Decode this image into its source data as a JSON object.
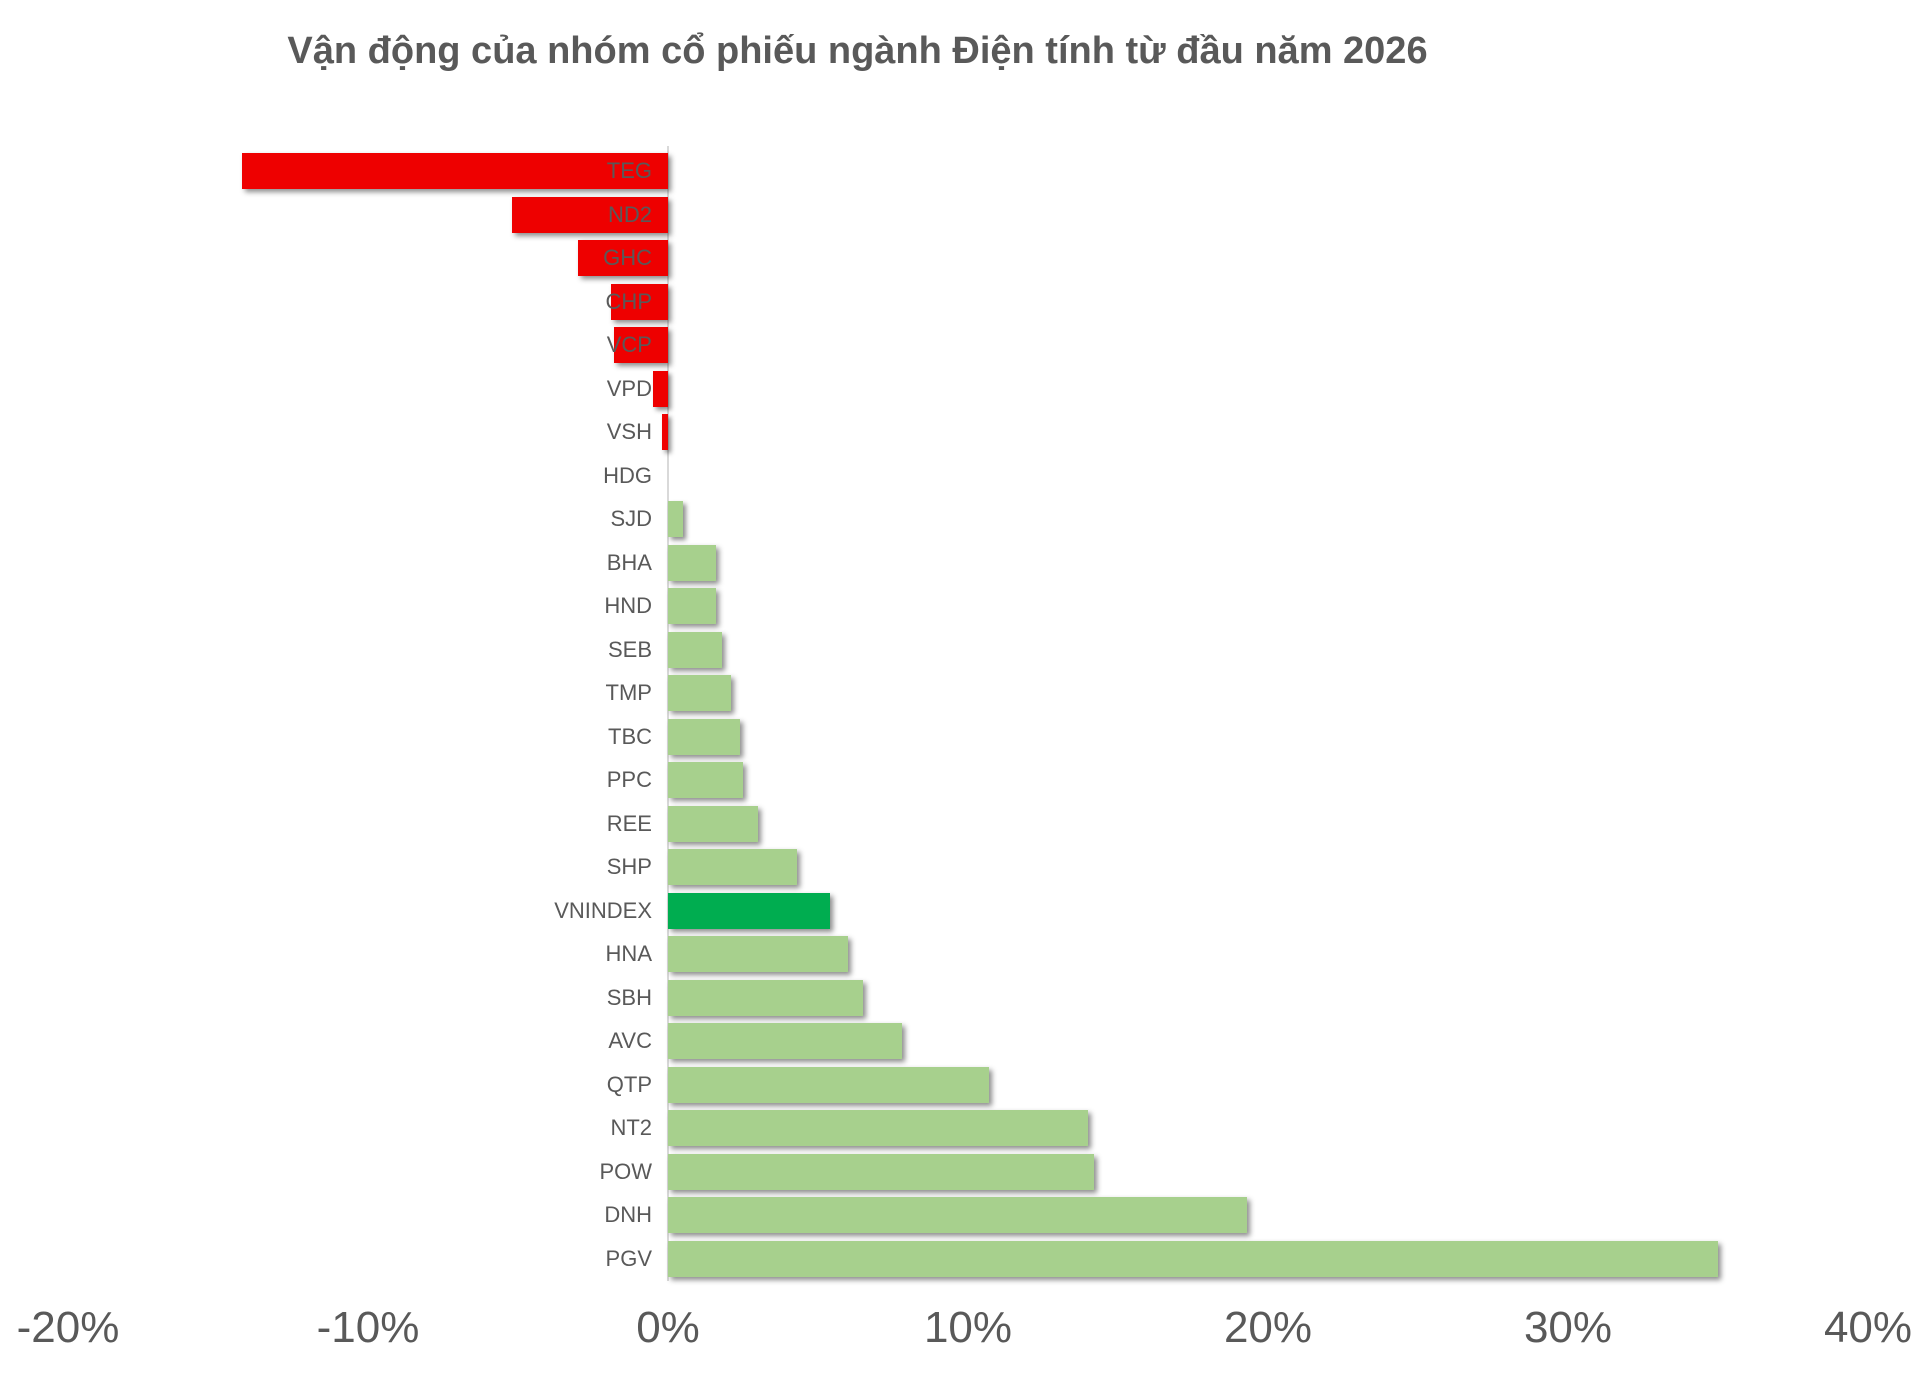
{
  "chart_data": {
    "type": "bar",
    "orientation": "horizontal",
    "title": "Vận động của nhóm cổ phiếu ngành Điện tính từ đầu năm 2026",
    "xlabel": "",
    "ylabel": "",
    "unit": "%",
    "grid": false,
    "legend": false,
    "categories": [
      "TEG",
      "ND2",
      "GHC",
      "CHP",
      "VCP",
      "VPD",
      "VSH",
      "HDG",
      "SJD",
      "BHA",
      "HND",
      "SEB",
      "TMP",
      "TBC",
      "PPC",
      "REE",
      "SHP",
      "VNINDEX",
      "HNA",
      "SBH",
      "AVC",
      "QTP",
      "NT2",
      "POW",
      "DNH",
      "PGV"
    ],
    "values": [
      -14.2,
      -5.2,
      -3.0,
      -1.9,
      -1.8,
      -0.5,
      -0.2,
      0.0,
      0.5,
      1.6,
      1.6,
      1.8,
      2.1,
      2.4,
      2.5,
      3.0,
      4.3,
      5.4,
      6.0,
      6.5,
      7.8,
      10.7,
      14.0,
      14.2,
      19.3,
      35.0
    ],
    "highlight_category": "VNINDEX",
    "x_tick_values": [
      -20,
      -10,
      0,
      10,
      20,
      30,
      40
    ],
    "x_tick_labels": [
      "-20%",
      "-10%",
      "0%",
      "10%",
      "20%",
      "30%",
      "40%"
    ],
    "x_range": [
      -20,
      40
    ],
    "colors": {
      "negative": "#ee0000",
      "positive": "#a7d08d",
      "highlight": "#00ad50",
      "label_text": "#595959",
      "axis_text": "#595959",
      "zero_line": "#d9d9d9"
    }
  }
}
